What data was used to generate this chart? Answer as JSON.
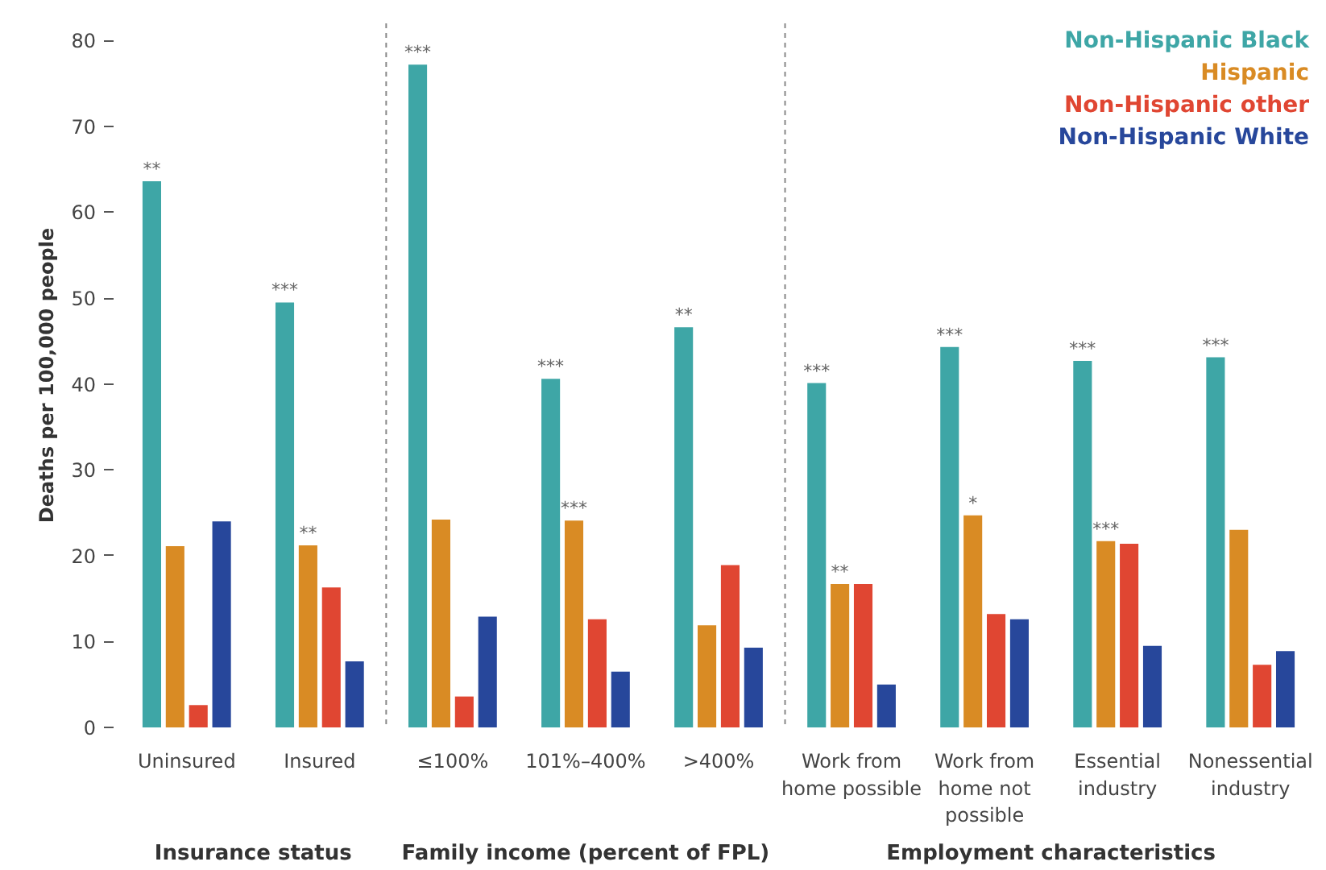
{
  "chart_data": {
    "type": "bar",
    "ylabel": "Deaths per 100,000 people",
    "categories": [
      "Uninsured",
      "Insured",
      "≤100%",
      "101%–400%",
      ">400%",
      "Work from home possible",
      "Work from home not possible",
      "Essential industry",
      "Nonessential industry"
    ],
    "series": [
      {
        "name": "Non-Hispanic Black",
        "color": "#3ea6a6",
        "values": [
          63.6,
          49.5,
          77.2,
          40.6,
          46.6,
          40.1,
          44.3,
          42.7,
          43.1
        ],
        "value_labels": [
          "**",
          "***",
          "***",
          "***",
          "**",
          "***",
          "***",
          "***",
          "***"
        ]
      },
      {
        "name": "Hispanic",
        "color": "#d98b24",
        "values": [
          21.1,
          21.2,
          24.2,
          24.1,
          11.9,
          16.7,
          24.7,
          21.7,
          23.0
        ],
        "value_labels": [
          null,
          "**",
          null,
          "***",
          null,
          "**",
          "*",
          "***",
          null
        ]
      },
      {
        "name": "Non-Hispanic other",
        "color": "#e04632",
        "values": [
          2.6,
          16.3,
          3.6,
          12.6,
          18.9,
          16.7,
          13.2,
          21.4,
          7.3
        ]
      },
      {
        "name": "Non-Hispanic White",
        "color": "#27479b",
        "values": [
          24.0,
          7.7,
          12.9,
          6.5,
          9.3,
          5.0,
          12.6,
          9.5,
          8.9
        ]
      }
    ],
    "ylim": [
      0,
      82
    ],
    "yticks": [
      0,
      10,
      20,
      30,
      40,
      50,
      60,
      70,
      80
    ],
    "grid": false,
    "legend": "top right",
    "annotations": [
      "Insurance status",
      "Family income (percent of FPL)",
      "Employment characteristics"
    ]
  }
}
